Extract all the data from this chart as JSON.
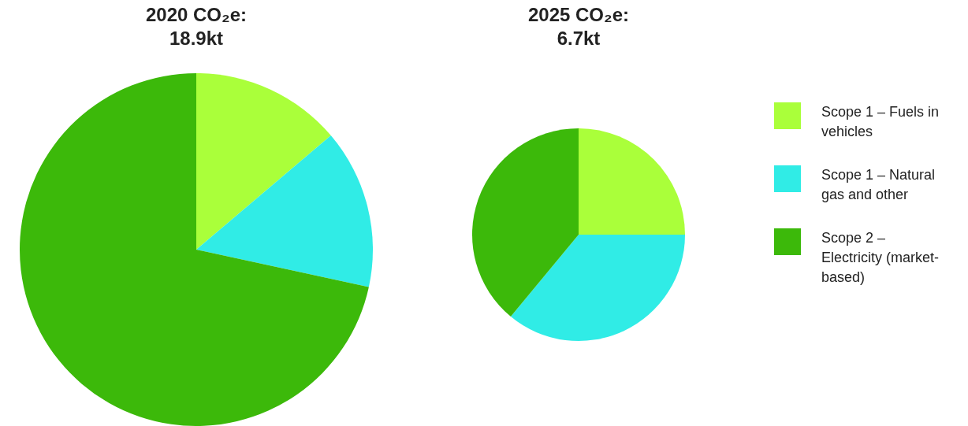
{
  "chart_data": [
    {
      "type": "pie",
      "title": "2020 CO₂e: 18.9kt",
      "categories": [
        null,
        null,
        null
      ],
      "values": [
        13.8,
        14.6,
        71.6
      ],
      "colors": [
        "#aaff3a",
        "#30ece6",
        "#3cb90a"
      ],
      "legend": false
    },
    {
      "type": "pie",
      "title": "2025 CO₂e: 6.7kt",
      "categories": [
        "Scope 1 – Fuels in vehicles",
        "Scope 1 – Natural gas and other",
        "Scope 2 – Electricity (market-based)"
      ],
      "values": [
        25,
        36,
        39
      ],
      "colors": [
        "#aaff3a",
        "#30ece6",
        "#3cb90a"
      ],
      "legend": "right"
    }
  ]
}
